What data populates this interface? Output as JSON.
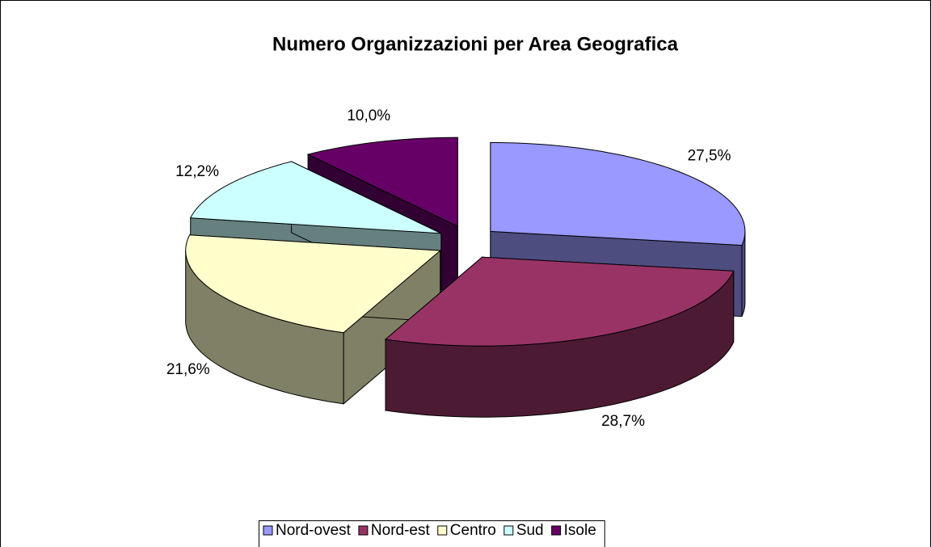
{
  "chart_data": {
    "type": "pie",
    "title": "Numero Organizzazioni per Area Geografica",
    "categories": [
      "Nord-ovest",
      "Nord-est",
      "Centro",
      "Sud",
      "Isole"
    ],
    "values": [
      27.5,
      28.7,
      21.6,
      12.2,
      10.0
    ],
    "value_labels": [
      "27,5%",
      "28,7%",
      "21,6%",
      "12,2%",
      "10,0%"
    ],
    "colors": [
      "#9999ff",
      "#993366",
      "#ffffcc",
      "#ccffff",
      "#660066"
    ],
    "legend": "bottom"
  }
}
